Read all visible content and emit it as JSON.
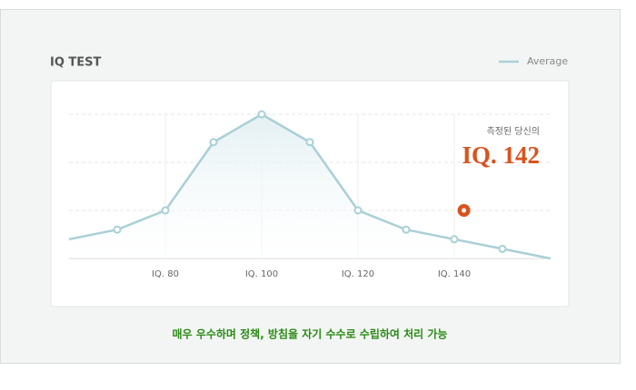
{
  "chart_data": {
    "type": "area",
    "title": "IQ TEST",
    "x": [
      60,
      70,
      80,
      90,
      100,
      110,
      120,
      130,
      140,
      150,
      160
    ],
    "series": [
      {
        "name": "Average",
        "color": "#a9d0d6",
        "values": [
          0.4,
          0.6,
          1.0,
          2.42,
          3.0,
          2.42,
          1.0,
          0.6,
          0.4,
          0.2,
          0
        ]
      }
    ],
    "xlim": [
      60,
      160
    ],
    "ylim": [
      0,
      3
    ],
    "xticks": [
      {
        "value": 80,
        "label": "IQ. 80"
      },
      {
        "value": 100,
        "label": "IQ. 100"
      },
      {
        "value": 120,
        "label": "IQ. 120"
      },
      {
        "value": 140,
        "label": "IQ. 140"
      }
    ],
    "yticks": [
      0,
      1,
      2,
      3
    ],
    "grid": true,
    "legend": "top-right",
    "highlight": {
      "x": 142,
      "y": 1,
      "caption": "측정된 당신의",
      "label": "IQ. 142",
      "color": "#d9531e"
    },
    "footer": "매우 우수하며 정책, 방침을 자기 수수로 수립하여 처리 가능",
    "footer_color": "#2a8a14"
  }
}
